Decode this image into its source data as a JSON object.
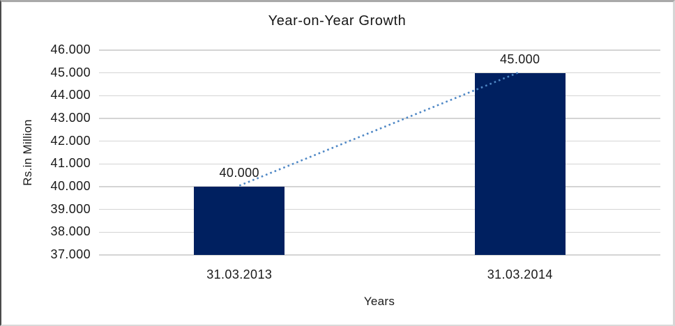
{
  "chart_data": {
    "type": "bar",
    "title": "Year-on-Year Growth",
    "xlabel": "Years",
    "ylabel": "Rs.in Million",
    "categories": [
      "31.03.2013",
      "31.03.2014"
    ],
    "values": [
      40,
      45
    ],
    "value_labels": [
      "40.000",
      "45.000"
    ],
    "yticks": [
      "46.000",
      "45.000",
      "44.000",
      "43.000",
      "42.000",
      "41.000",
      "40.000",
      "39.000",
      "38.000",
      "37.000"
    ],
    "ylim": [
      37,
      46
    ],
    "grid": true,
    "legend": false,
    "bar_color": "#002060",
    "gridline_color": "#d4d4d4",
    "text_color": "#1a1a1a",
    "trendline": {
      "style": "dotted",
      "color": "#4e87c5",
      "connects_values": [
        40,
        45
      ]
    }
  }
}
